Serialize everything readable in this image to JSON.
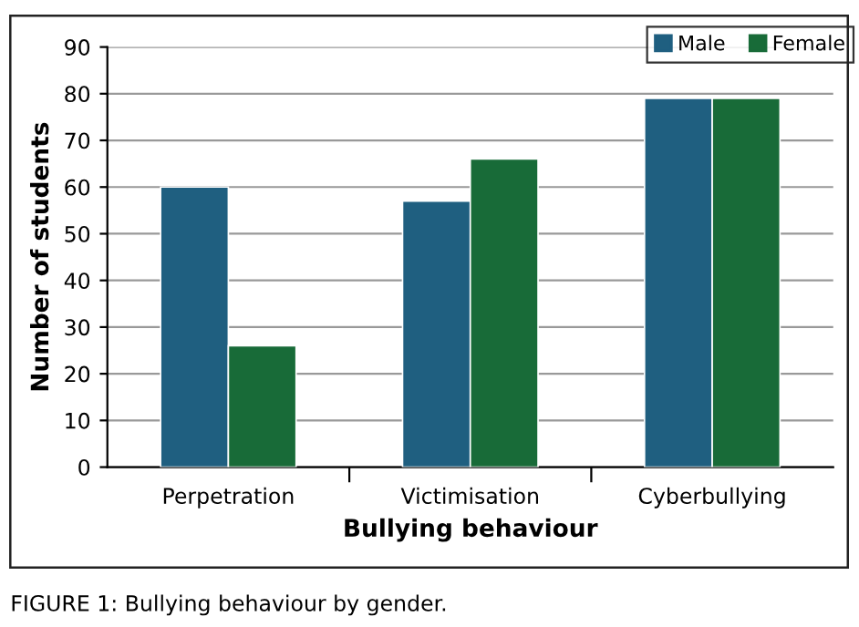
{
  "chart_data": {
    "type": "bar",
    "xlabel": "Bullying behaviour",
    "ylabel": "Number of students",
    "categories": [
      "Perpetration",
      "Victimisation",
      "Cyberbullying"
    ],
    "series": [
      {
        "name": "Male",
        "color": "#1f5f80",
        "values": [
          60,
          57,
          79
        ]
      },
      {
        "name": "Female",
        "color": "#186b38",
        "values": [
          26,
          66,
          79
        ]
      }
    ],
    "ylim": [
      0,
      90
    ],
    "yticks": [
      0,
      10,
      20,
      30,
      40,
      50,
      60,
      70,
      80,
      90
    ],
    "grid": "y",
    "legend": "top right",
    "annotations": [
      "FIGURE 1: Bullying behaviour by gender."
    ]
  }
}
